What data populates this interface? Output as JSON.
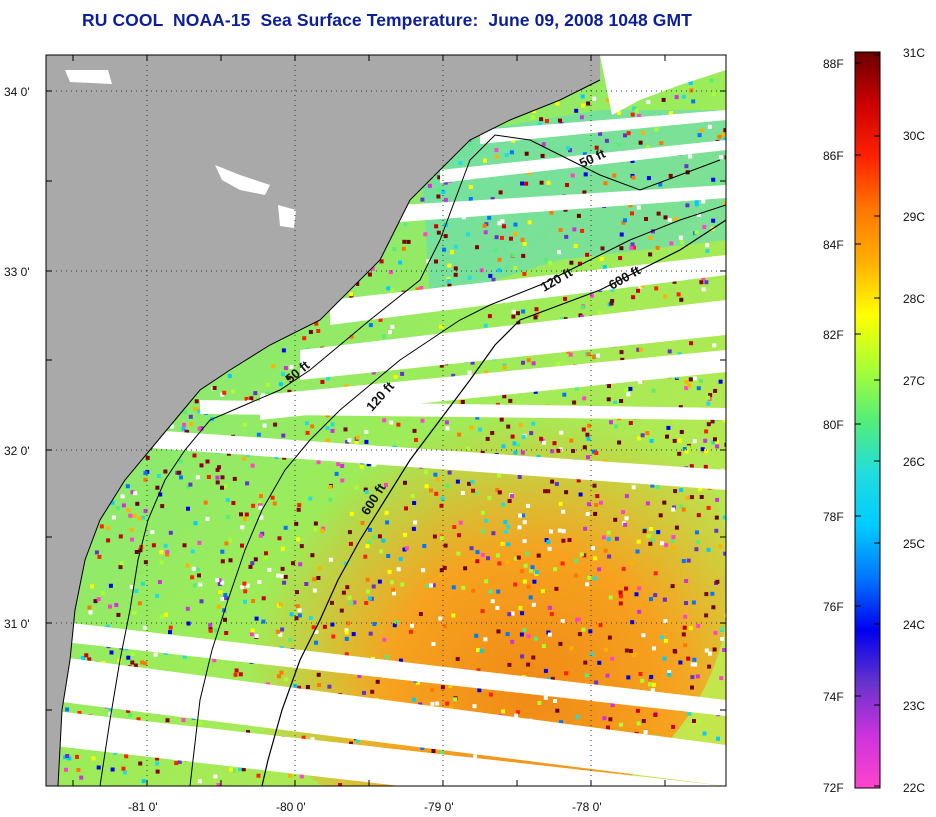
{
  "header": {
    "title": "RU COOL  NOAA-15  Sea Surface Temperature:  June 09, 2008 1048 GMT"
  },
  "map": {
    "lat_labels": [
      "34 0'",
      "33 0'",
      "32 0'",
      "31 0'"
    ],
    "lon_labels": [
      "-81 0'",
      "-80 0'",
      "-79 0'",
      "-78 0'"
    ],
    "contour_labels": [
      {
        "text": "50 ft"
      },
      {
        "text": "120 ft"
      },
      {
        "text": "600 ft"
      },
      {
        "text": "50 ft"
      },
      {
        "text": "120 ft"
      },
      {
        "text": "600 ft"
      }
    ],
    "colors": {
      "land": "#a9a9a9",
      "gap": "#ffffff",
      "border": "#000000"
    }
  },
  "colorbar": {
    "fahrenheit_labels": [
      "88F",
      "86F",
      "84F",
      "82F",
      "80F",
      "78F",
      "76F",
      "74F",
      "72F"
    ],
    "celsius_labels": [
      "31C",
      "30C",
      "29C",
      "28C",
      "27C",
      "26C",
      "25C",
      "24C",
      "23C",
      "22C"
    ],
    "gradient_stops": [
      "#6b0000",
      "#cc0000",
      "#ff2200",
      "#ff7700",
      "#ffb000",
      "#ffff00",
      "#aaff33",
      "#55ee77",
      "#22dddd",
      "#00ccff",
      "#0077ff",
      "#0000ee",
      "#6633cc",
      "#cc33dd",
      "#ff44cc"
    ]
  }
}
